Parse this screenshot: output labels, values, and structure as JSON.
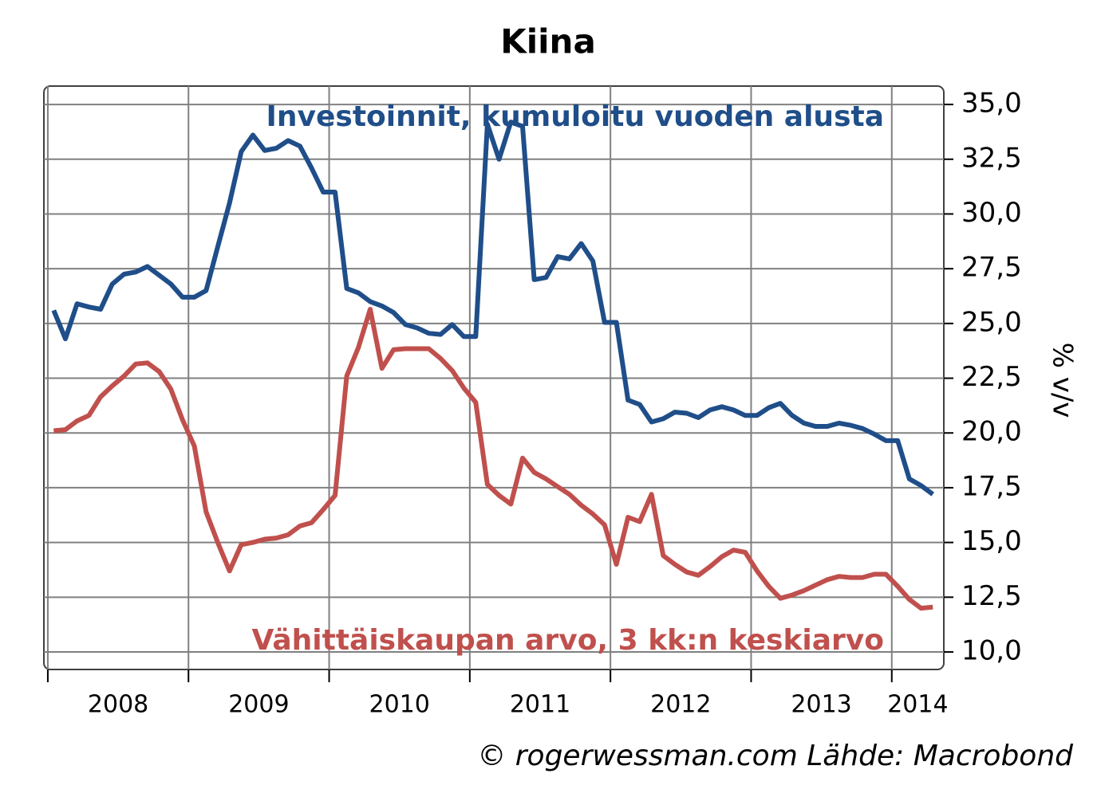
{
  "chart_data": {
    "type": "line",
    "title": "Kiina",
    "y_label": "% v/v",
    "source": "© rogerwessman.com Lähde: Macrobond",
    "x": [
      2008.042,
      2008.125,
      2008.208,
      2008.292,
      2008.375,
      2008.458,
      2008.542,
      2008.625,
      2008.708,
      2008.792,
      2008.875,
      2008.958,
      2009.042,
      2009.125,
      2009.208,
      2009.292,
      2009.375,
      2009.458,
      2009.542,
      2009.625,
      2009.708,
      2009.792,
      2009.875,
      2009.958,
      2010.042,
      2010.125,
      2010.208,
      2010.292,
      2010.375,
      2010.458,
      2010.542,
      2010.625,
      2010.708,
      2010.792,
      2010.875,
      2010.958,
      2011.042,
      2011.125,
      2011.208,
      2011.292,
      2011.375,
      2011.458,
      2011.542,
      2011.625,
      2011.708,
      2011.792,
      2011.875,
      2011.958,
      2012.042,
      2012.125,
      2012.208,
      2012.292,
      2012.375,
      2012.458,
      2012.542,
      2012.625,
      2012.708,
      2012.792,
      2012.875,
      2012.958,
      2013.042,
      2013.125,
      2013.208,
      2013.292,
      2013.375,
      2013.458,
      2013.542,
      2013.625,
      2013.708,
      2013.792,
      2013.875,
      2013.958,
      2014.042,
      2014.125,
      2014.208,
      2014.292
    ],
    "series": [
      {
        "name": "Investoinnit, kumuloitu vuoden alusta",
        "color": "#1f4e89",
        "values": [
          25.6,
          24.3,
          25.9,
          25.75,
          25.65,
          26.8,
          27.25,
          27.35,
          27.6,
          27.2,
          26.8,
          26.2,
          26.2,
          26.5,
          28.5,
          30.5,
          32.85,
          33.6,
          32.9,
          33.0,
          33.35,
          33.1,
          32.1,
          31.0,
          31.0,
          26.6,
          26.4,
          26.0,
          25.8,
          25.5,
          24.95,
          24.8,
          24.55,
          24.5,
          24.95,
          24.4,
          24.4,
          34.1,
          32.5,
          34.2,
          34.0,
          27.0,
          27.1,
          28.05,
          27.95,
          28.65,
          27.85,
          25.05,
          25.05,
          21.5,
          21.3,
          20.5,
          20.65,
          20.95,
          20.9,
          20.7,
          21.05,
          21.2,
          21.05,
          20.8,
          20.8,
          21.15,
          21.35,
          20.8,
          20.45,
          20.3,
          20.3,
          20.45,
          20.35,
          20.2,
          19.95,
          19.65,
          19.65,
          17.9,
          17.6,
          17.2
        ]
      },
      {
        "name": "Vähittäiskaupan arvo, 3 kk:n keskiarvo",
        "color": "#c0504d",
        "values": [
          20.1,
          20.15,
          20.55,
          20.8,
          21.65,
          22.15,
          22.6,
          23.15,
          23.2,
          22.8,
          22.0,
          20.6,
          19.4,
          16.4,
          15.0,
          13.7,
          14.9,
          15.0,
          15.15,
          15.2,
          15.35,
          15.75,
          15.9,
          16.5,
          17.15,
          22.6,
          23.9,
          25.65,
          22.95,
          23.8,
          23.85,
          23.85,
          23.85,
          23.4,
          22.85,
          22.05,
          21.4,
          17.65,
          17.15,
          16.75,
          18.85,
          18.2,
          17.9,
          17.55,
          17.2,
          16.7,
          16.3,
          15.8,
          14.0,
          16.15,
          15.95,
          17.2,
          14.4,
          14.0,
          13.65,
          13.5,
          13.9,
          14.35,
          14.65,
          14.55,
          13.7,
          13.0,
          12.45,
          12.6,
          12.8,
          13.05,
          13.3,
          13.45,
          13.4,
          13.4,
          13.55,
          13.55,
          13.0,
          12.4,
          12.0,
          12.05
        ]
      }
    ],
    "xlim": [
      2007.972,
      2014.37
    ],
    "xticks": [
      {
        "value": 2008,
        "label": "2008"
      },
      {
        "value": 2009,
        "label": "2009"
      },
      {
        "value": 2010,
        "label": "2010"
      },
      {
        "value": 2011,
        "label": "2011"
      },
      {
        "value": 2012,
        "label": "2012"
      },
      {
        "value": 2013,
        "label": "2013"
      },
      {
        "value": 2014,
        "label": "2014"
      }
    ],
    "ylim": [
      9.2,
      35.84
    ],
    "yticks": [
      {
        "value": 10,
        "label": "10,0"
      },
      {
        "value": 12.5,
        "label": "12,5"
      },
      {
        "value": 15,
        "label": "15,0"
      },
      {
        "value": 17.5,
        "label": "17,5"
      },
      {
        "value": 20,
        "label": "20,0"
      },
      {
        "value": 22.5,
        "label": "22,5"
      },
      {
        "value": 25,
        "label": "25,0"
      },
      {
        "value": 27.5,
        "label": "27,5"
      },
      {
        "value": 30,
        "label": "30,0"
      },
      {
        "value": 32.5,
        "label": "32,5"
      },
      {
        "value": 35,
        "label": "35,0"
      }
    ],
    "grid": true,
    "y_axis_side": "right"
  }
}
